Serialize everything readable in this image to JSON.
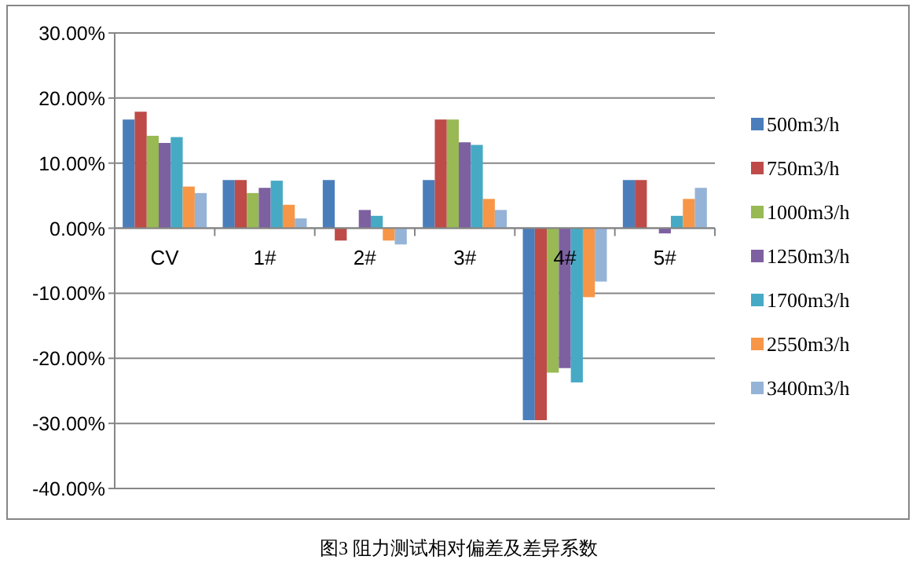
{
  "chart_data": {
    "type": "bar",
    "title": "图3 阻力测试相对偏差及差异系数",
    "categories": [
      "CV",
      "1#",
      "2#",
      "3#",
      "4#",
      "5#"
    ],
    "series": [
      {
        "name": "500m3/h",
        "color": "#4a7ebb",
        "values": [
          16.7,
          7.4,
          7.4,
          7.4,
          -29.5,
          7.4
        ]
      },
      {
        "name": "750m3/h",
        "color": "#be4b48",
        "values": [
          17.9,
          7.4,
          -1.9,
          16.7,
          -29.5,
          7.4
        ]
      },
      {
        "name": "1000m3/h",
        "color": "#98b954",
        "values": [
          14.2,
          5.4,
          0,
          16.7,
          -22.2,
          0
        ]
      },
      {
        "name": "1250m3/h",
        "color": "#7d60a0",
        "values": [
          13.1,
          6.2,
          2.8,
          13.2,
          -21.5,
          -0.8
        ]
      },
      {
        "name": "1700m3/h",
        "color": "#46aac5",
        "values": [
          14.0,
          7.3,
          1.9,
          12.8,
          -23.7,
          1.9
        ]
      },
      {
        "name": "2550m3/h",
        "color": "#f79646",
        "values": [
          6.4,
          3.6,
          -1.9,
          4.5,
          -10.6,
          4.5
        ]
      },
      {
        "name": "3400m3/h",
        "color": "#95b3d7",
        "values": [
          5.4,
          1.5,
          -2.5,
          2.8,
          -8.2,
          6.2
        ]
      }
    ],
    "ylim": [
      -40,
      30
    ],
    "yticks": [
      {
        "value": -40,
        "label": "-40.00%"
      },
      {
        "value": -30,
        "label": "-30.00%"
      },
      {
        "value": -20,
        "label": "-20.00%"
      },
      {
        "value": -10,
        "label": "-10.00%"
      },
      {
        "value": 0,
        "label": "0.00%"
      },
      {
        "value": 10,
        "label": "10.00%"
      },
      {
        "value": 20,
        "label": "20.00%"
      },
      {
        "value": 30,
        "label": "30.00%"
      }
    ],
    "grid": "y",
    "legend": "right"
  }
}
